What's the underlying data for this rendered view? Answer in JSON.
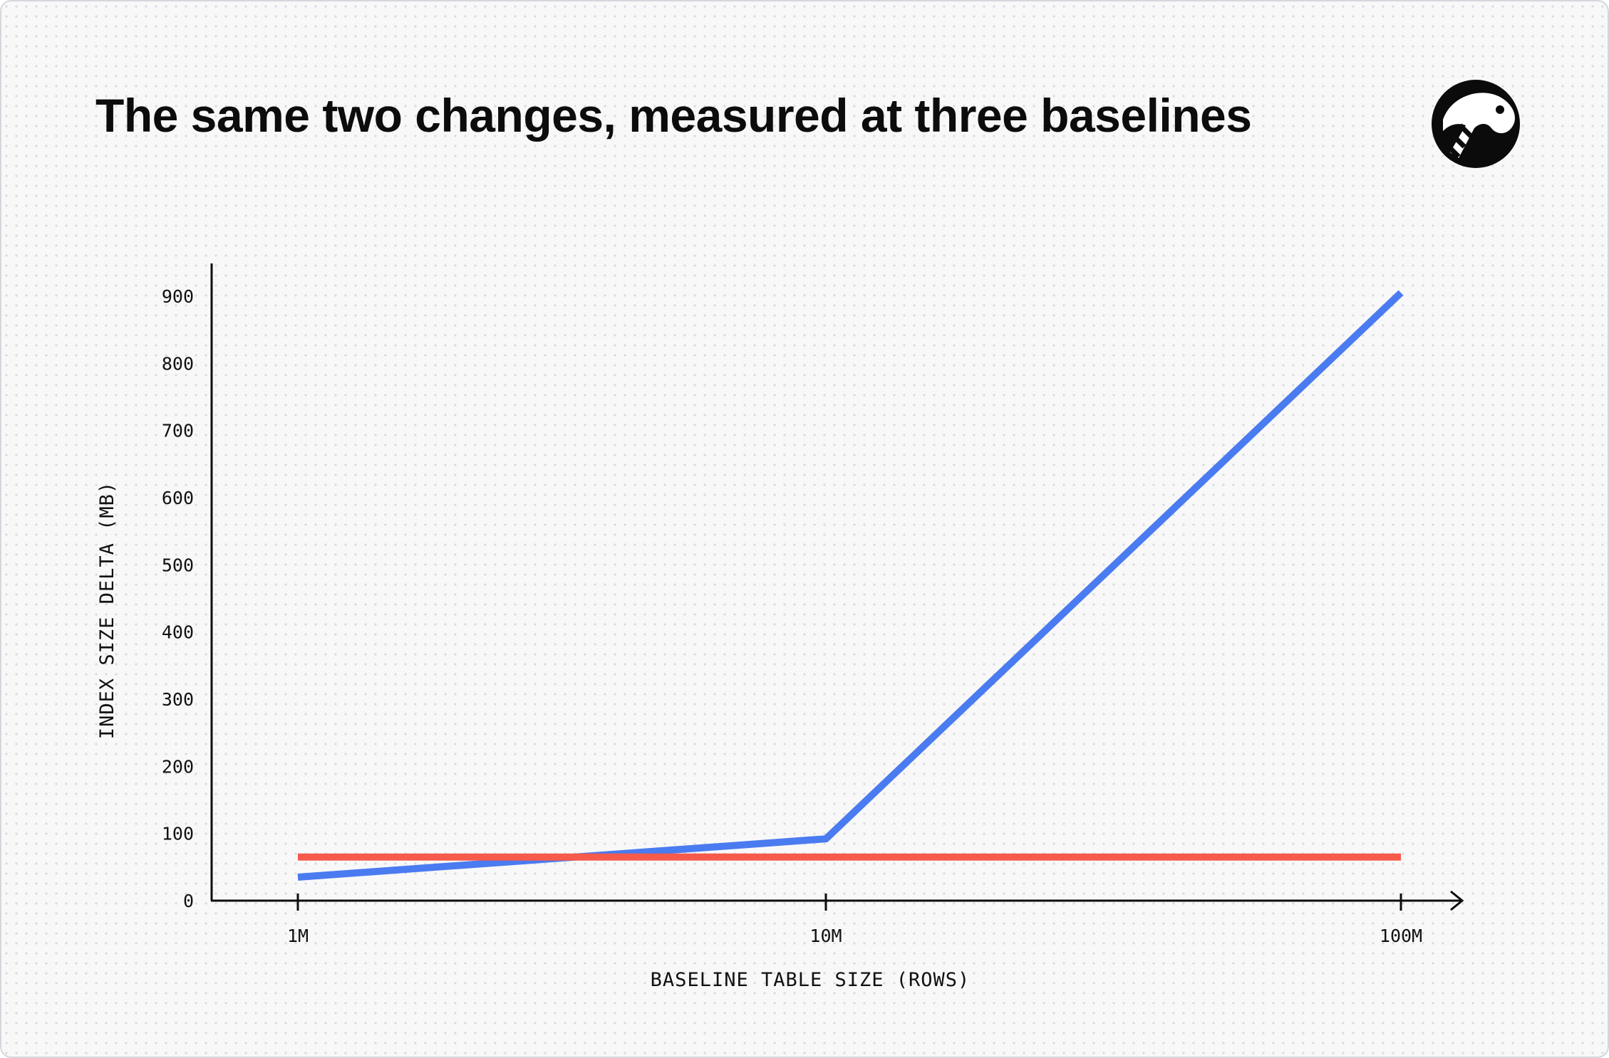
{
  "title": "The same two changes, measured at three baselines",
  "logo_icon": "creature-head-logo-icon",
  "chart_data": {
    "type": "line",
    "title": "The same two changes, measured at three baselines",
    "xlabel": "BASELINE TABLE SIZE (ROWS)",
    "ylabel": "INDEX SIZE DELTA (MB)",
    "x_scale": "log",
    "categories": [
      "1M",
      "10M",
      "100M"
    ],
    "x": [
      1000000,
      10000000,
      100000000
    ],
    "yticks": [
      0,
      100,
      200,
      300,
      400,
      500,
      600,
      700,
      800,
      900
    ],
    "ylim": [
      0,
      950
    ],
    "grid": false,
    "legend": "none",
    "series": [
      {
        "color": "#4a7bf0",
        "values": [
          35,
          92,
          905
        ]
      },
      {
        "color": "#f65a4b",
        "values": [
          65,
          65,
          65
        ]
      }
    ]
  }
}
